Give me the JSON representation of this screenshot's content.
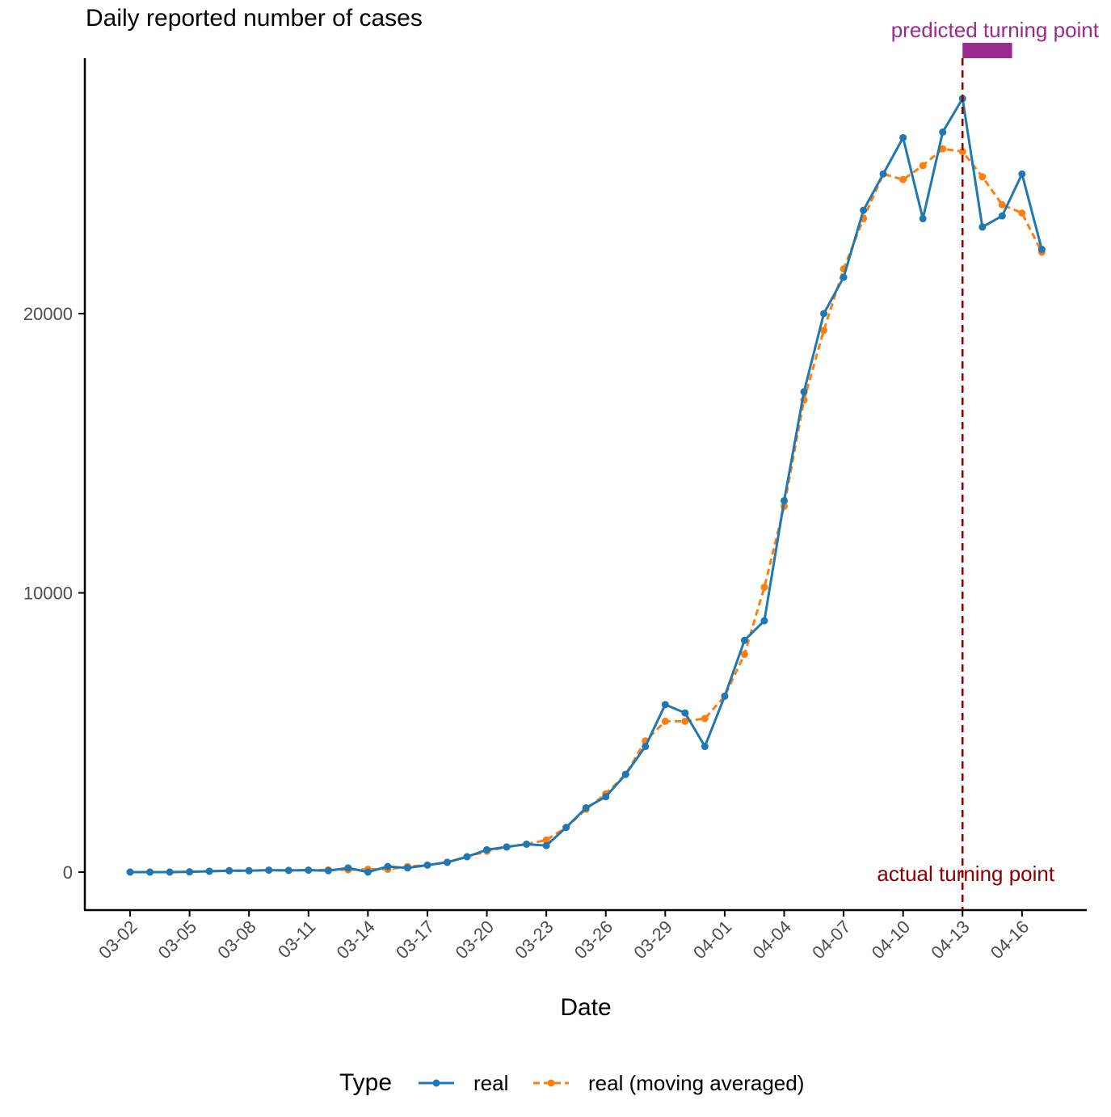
{
  "chart_data": {
    "type": "line",
    "title": "Daily reported number of cases",
    "xlabel": "Date",
    "ylabel": "",
    "x": [
      "03-02",
      "03-03",
      "03-04",
      "03-05",
      "03-06",
      "03-07",
      "03-08",
      "03-09",
      "03-10",
      "03-11",
      "03-12",
      "03-13",
      "03-14",
      "03-15",
      "03-16",
      "03-17",
      "03-18",
      "03-19",
      "03-20",
      "03-21",
      "03-22",
      "03-23",
      "03-24",
      "03-25",
      "03-26",
      "03-27",
      "03-28",
      "03-29",
      "03-30",
      "03-31",
      "04-01",
      "04-02",
      "04-03",
      "04-04",
      "04-05",
      "04-06",
      "04-07",
      "04-08",
      "04-09",
      "04-10",
      "04-11",
      "04-12",
      "04-13",
      "04-14",
      "04-15",
      "04-16",
      "04-17"
    ],
    "x_tick_labels": [
      "03-02",
      "03-05",
      "03-08",
      "03-11",
      "03-14",
      "03-17",
      "03-20",
      "03-23",
      "03-26",
      "03-29",
      "04-01",
      "04-04",
      "04-07",
      "04-10",
      "04-13",
      "04-16"
    ],
    "y_ticks": [
      0,
      10000,
      20000
    ],
    "y_tick_labels": [
      "0",
      "10000",
      "20000"
    ],
    "ylim": [
      -1400,
      29300
    ],
    "series": [
      {
        "name": "real",
        "color": "#1f77b4",
        "line_style": "solid",
        "values": [
          0,
          0,
          0,
          10,
          30,
          50,
          50,
          70,
          60,
          70,
          50,
          150,
          0,
          200,
          150,
          250,
          350,
          550,
          800,
          900,
          1000,
          950,
          1600,
          2300,
          2700,
          3500,
          4500,
          6000,
          5700,
          4500,
          6300,
          8300,
          9000,
          13300,
          17200,
          20000,
          21300,
          23700,
          25000,
          26300,
          23400,
          26500,
          27700,
          23100,
          23500,
          25000,
          22300
        ]
      },
      {
        "name": "real (moving averaged)",
        "color": "#ff7f0e",
        "line_style": "dashed",
        "values": [
          0,
          0,
          0,
          10,
          30,
          50,
          50,
          70,
          60,
          70,
          80,
          80,
          100,
          100,
          200,
          250,
          350,
          550,
          750,
          900,
          1000,
          1150,
          1600,
          2250,
          2800,
          3500,
          4700,
          5400,
          5400,
          5500,
          6300,
          7800,
          10200,
          13100,
          16900,
          19400,
          21600,
          23400,
          25000,
          24800,
          25300,
          25900,
          25800,
          24900,
          23900,
          23600,
          22200
        ]
      }
    ],
    "annotations": [
      {
        "text": "actual turning point",
        "type": "vertical-line",
        "x": "04-13",
        "color": "#8b0000",
        "line_style": "dashed"
      },
      {
        "text": "predicted turning point",
        "type": "range-bar",
        "x_range": [
          "04-13",
          "04-15.5"
        ],
        "color": "#9a2a8e"
      }
    ],
    "legend": {
      "title": "Type",
      "placement": "bottom",
      "entries": [
        "real",
        "real (moving averaged)"
      ]
    },
    "grid": false
  }
}
